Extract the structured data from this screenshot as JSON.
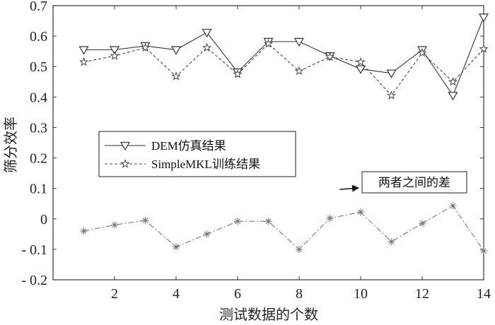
{
  "chart_data": {
    "type": "line",
    "xlabel": "测试数据的个数",
    "ylabel": "筛分效率",
    "xlim": [
      0,
      14
    ],
    "ylim": [
      -0.2,
      0.7
    ],
    "x_ticks": [
      2,
      4,
      6,
      8,
      10,
      12,
      14
    ],
    "y_ticks": [
      -0.2,
      -0.1,
      0,
      0.1,
      0.2,
      0.3,
      0.4,
      0.5,
      0.6,
      0.7
    ],
    "y_tick_labels": [
      "- 0.2",
      "- 0.1",
      "0",
      "0.1",
      "0.2",
      "0.3",
      "0.4",
      "0.5",
      "0.6",
      "0.7"
    ],
    "grid": false,
    "legend_position": "center-left",
    "x": [
      1,
      2,
      3,
      4,
      5,
      6,
      7,
      8,
      9,
      10,
      11,
      12,
      13,
      14
    ],
    "series": [
      {
        "name": "DEM仿真结果",
        "line_style": "solid",
        "marker": "triangle-down",
        "color": "#333333",
        "values": [
          0.555,
          0.555,
          0.568,
          0.555,
          0.612,
          0.482,
          0.582,
          0.582,
          0.535,
          0.492,
          0.478,
          0.555,
          0.405,
          0.662
        ]
      },
      {
        "name": "SimpleMKL训练结果",
        "line_style": "dashed",
        "marker": "star",
        "color": "#444444",
        "values": [
          0.515,
          0.535,
          0.562,
          0.468,
          0.562,
          0.475,
          0.575,
          0.485,
          0.532,
          0.515,
          0.405,
          0.545,
          0.45,
          0.558
        ]
      },
      {
        "name": "",
        "line_style": "dash-dot",
        "marker": "asterisk",
        "color": "#777777",
        "values": [
          -0.04,
          -0.02,
          -0.005,
          -0.092,
          -0.05,
          -0.008,
          -0.008,
          -0.1,
          0.002,
          0.022,
          -0.075,
          -0.015,
          0.043,
          -0.105
        ]
      }
    ],
    "annotations": [
      {
        "text": "两者之间的差",
        "arrow_to_x": 9.0,
        "arrow_to_y": 0.092
      }
    ]
  }
}
